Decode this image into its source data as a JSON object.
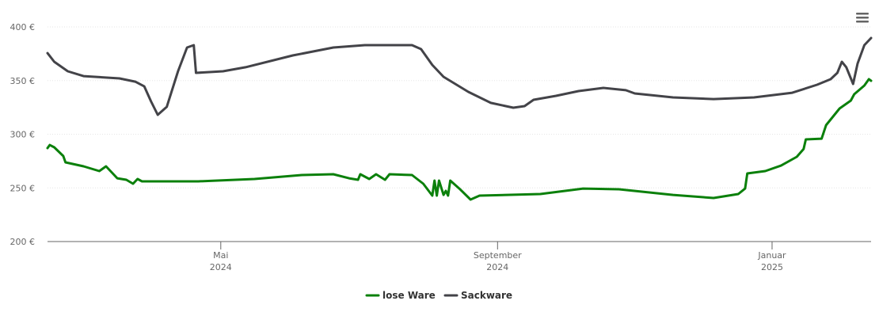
{
  "chart_data": {
    "type": "line",
    "xlim": [
      44,
      410
    ],
    "xticks": [
      {
        "value": 121,
        "label": "Mai 2024"
      },
      {
        "value": 244,
        "label": "September 2024"
      },
      {
        "value": 366,
        "label": "Januar 2025"
      }
    ],
    "ylim": [
      200,
      400
    ],
    "yticks": [
      {
        "value": 200,
        "label": "200 €"
      },
      {
        "value": 250,
        "label": "250 €"
      },
      {
        "value": 300,
        "label": "300 €"
      },
      {
        "value": 350,
        "label": "350 €"
      },
      {
        "value": 400,
        "label": "400 €"
      }
    ],
    "grid": true,
    "legend": "bottom",
    "series": [
      {
        "name": "lose Ware",
        "color": "#0b800b",
        "x": [
          44,
          45,
          47,
          51,
          52,
          60,
          67,
          70,
          75,
          79,
          82,
          84,
          86,
          111,
          136,
          157,
          171,
          178,
          182,
          183,
          187,
          190,
          194,
          196,
          206,
          211,
          215,
          216,
          217,
          218,
          220,
          221,
          222,
          223,
          227,
          232,
          236,
          263,
          282,
          298,
          322,
          340,
          351,
          354,
          355,
          363,
          370,
          377,
          380,
          381,
          388,
          390,
          396,
          401,
          402.5,
          407,
          409,
          410
        ],
        "values": [
          287.1,
          290,
          287.8,
          279.7,
          273.8,
          270.1,
          265.7,
          270.1,
          259,
          257.6,
          253.9,
          258.3,
          256.1,
          256.1,
          258.3,
          262,
          262.7,
          259,
          257.6,
          262.7,
          258.3,
          262.7,
          257.6,
          262.7,
          262,
          253.9,
          242.8,
          256.8,
          242.8,
          256.8,
          243.5,
          247.2,
          242.8,
          256.8,
          249.4,
          239.1,
          242.8,
          244.3,
          249.4,
          248.7,
          243.5,
          240.6,
          244.3,
          249.4,
          263.5,
          265.7,
          270.8,
          279,
          286.3,
          295.2,
          295.9,
          308.5,
          324,
          331.4,
          337.3,
          345.4,
          351.3,
          349.8
        ]
      },
      {
        "name": "Sackware",
        "color": "#434348",
        "x": [
          44,
          47,
          53,
          60,
          76,
          83,
          87,
          90,
          93,
          97,
          102,
          106,
          109,
          110,
          122,
          132,
          153,
          171,
          185,
          206,
          210,
          215,
          220,
          231,
          241,
          251,
          256,
          260,
          270,
          280,
          291,
          301,
          305,
          322,
          340,
          358,
          375,
          386,
          392,
          395,
          397,
          399,
          402,
          404,
          407,
          410
        ],
        "values": [
          375.6,
          367.5,
          358.7,
          354.2,
          352,
          349,
          344.6,
          330.6,
          318.1,
          325.5,
          358.7,
          380.8,
          383,
          357.2,
          358.7,
          362.4,
          373.4,
          380.8,
          383,
          383,
          379.3,
          364.6,
          353.5,
          339.5,
          329.2,
          324.7,
          326.2,
          332.1,
          335.8,
          340.2,
          343.2,
          341,
          338,
          334.3,
          332.8,
          334.3,
          338.7,
          346.1,
          351.3,
          357.2,
          367.5,
          362.4,
          346.9,
          366,
          383,
          389.7
        ]
      }
    ]
  }
}
